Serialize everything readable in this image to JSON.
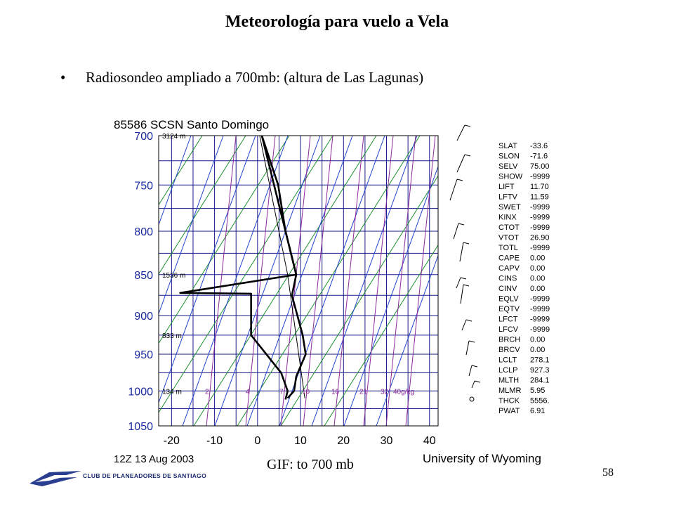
{
  "slide": {
    "title": "Meteorología para vuelo a Vela",
    "bullet": "Radiosondeo ampliado a 700mb: (altura de Las Lagunas)",
    "caption": "GIF: to 700 mb",
    "page_number": "58",
    "logo_text": "CLUB DE PLANEADORES DE SANTIAGO"
  },
  "chart_data": {
    "type": "line",
    "title": "85586 SCSN Santo Domingo",
    "footer_left": "12Z 13 Aug 2003",
    "footer_right": "University of Wyoming",
    "x_ticks": [
      -20,
      -10,
      0,
      10,
      20,
      30,
      40
    ],
    "x_range": [
      -23,
      42
    ],
    "pressure_ticks": [
      700,
      750,
      800,
      850,
      900,
      950,
      1000,
      1050
    ],
    "pressure_range": [
      700,
      1050
    ],
    "height_labels": [
      {
        "p": 700,
        "text": "3124 m"
      },
      {
        "p": 850,
        "text": "1536 m"
      },
      {
        "p": 925,
        "text": "833 m"
      },
      {
        "p": 1000,
        "text": "134 m"
      }
    ],
    "mixing_ratio_labels": [
      "2",
      "4",
      "7",
      "10",
      "16",
      "21",
      "32",
      "40g/kg"
    ],
    "temperature": [
      {
        "p": 700,
        "t": 1.0
      },
      {
        "p": 750,
        "t": 4.8
      },
      {
        "p": 800,
        "t": 6.5
      },
      {
        "p": 850,
        "t": 9.0
      },
      {
        "p": 875,
        "t": 8.0
      },
      {
        "p": 925,
        "t": 10.5
      },
      {
        "p": 950,
        "t": 11.2
      },
      {
        "p": 980,
        "t": 9.0
      },
      {
        "p": 1000,
        "t": 8.5
      },
      {
        "p": 1010,
        "t": 7.0
      }
    ],
    "dewpoint": [
      {
        "p": 700,
        "t": 1.0
      },
      {
        "p": 850,
        "t": 9.0
      },
      {
        "p": 872,
        "t": -18.0
      },
      {
        "p": 873,
        "t": -1.5
      },
      {
        "p": 925,
        "t": -1.5
      },
      {
        "p": 975,
        "t": 5.5
      },
      {
        "p": 1000,
        "t": 7.0
      },
      {
        "p": 1012,
        "t": 6.5
      }
    ],
    "parcel": [
      {
        "p": 700,
        "t": 0.5
      },
      {
        "p": 850,
        "t": 7.0
      },
      {
        "p": 927,
        "t": 9.0
      },
      {
        "p": 1010,
        "t": 11.0
      }
    ],
    "indices": [
      {
        "name": "SLAT",
        "value": "-33.6"
      },
      {
        "name": "SLON",
        "value": "-71.6"
      },
      {
        "name": "SELV",
        "value": "75.00"
      },
      {
        "name": "SHOW",
        "value": "-9999"
      },
      {
        "name": "LIFT",
        "value": "11.70"
      },
      {
        "name": "LFTV",
        "value": "11.59"
      },
      {
        "name": "SWET",
        "value": "-9999"
      },
      {
        "name": "KINX",
        "value": "-9999"
      },
      {
        "name": "CTOT",
        "value": "-9999"
      },
      {
        "name": "VTOT",
        "value": "26.90"
      },
      {
        "name": "TOTL",
        "value": "-9999"
      },
      {
        "name": "CAPE",
        "value": "0.00"
      },
      {
        "name": "CAPV",
        "value": "0.00"
      },
      {
        "name": "CINS",
        "value": "0.00"
      },
      {
        "name": "CINV",
        "value": "0.00"
      },
      {
        "name": "EQLV",
        "value": "-9999"
      },
      {
        "name": "EQTV",
        "value": "-9999"
      },
      {
        "name": "LFCT",
        "value": "-9999"
      },
      {
        "name": "LFCV",
        "value": "-9999"
      },
      {
        "name": "BRCH",
        "value": "0.00"
      },
      {
        "name": "BRCV",
        "value": "0.00"
      },
      {
        "name": "LCLT",
        "value": "278.1"
      },
      {
        "name": "LCLP",
        "value": "927.3"
      },
      {
        "name": "MLTH",
        "value": "284.1"
      },
      {
        "name": "MLMR",
        "value": "5.95"
      },
      {
        "name": "THCK",
        "value": "5556."
      },
      {
        "name": "PWAT",
        "value": "6.91"
      }
    ],
    "grid": true
  }
}
